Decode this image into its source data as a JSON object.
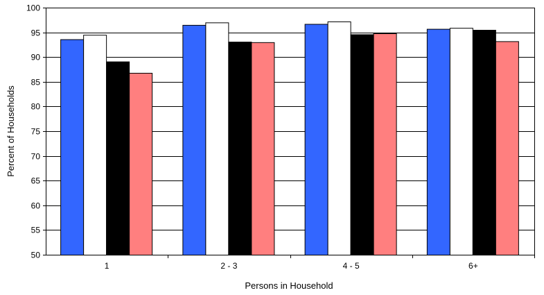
{
  "chart_data": {
    "type": "bar",
    "title": "",
    "xlabel": "Persons in Household",
    "ylabel": "Percent of Households",
    "ylim": [
      50,
      100
    ],
    "yticks": [
      50,
      55,
      60,
      65,
      70,
      75,
      80,
      85,
      90,
      95,
      100
    ],
    "grid": true,
    "legend": "none",
    "categories": [
      "1",
      "2 - 3",
      "4 - 5",
      "6+"
    ],
    "series": [
      {
        "color": "#3366ff",
        "values": [
          93.6,
          96.5,
          96.7,
          95.7
        ]
      },
      {
        "color": "#ffffff",
        "values": [
          94.5,
          97.0,
          97.2,
          95.9
        ]
      },
      {
        "color": "#000000",
        "values": [
          89.1,
          93.1,
          94.6,
          95.5
        ]
      },
      {
        "color": "#ff7f7f",
        "values": [
          86.8,
          93.0,
          94.8,
          93.2
        ]
      }
    ]
  }
}
